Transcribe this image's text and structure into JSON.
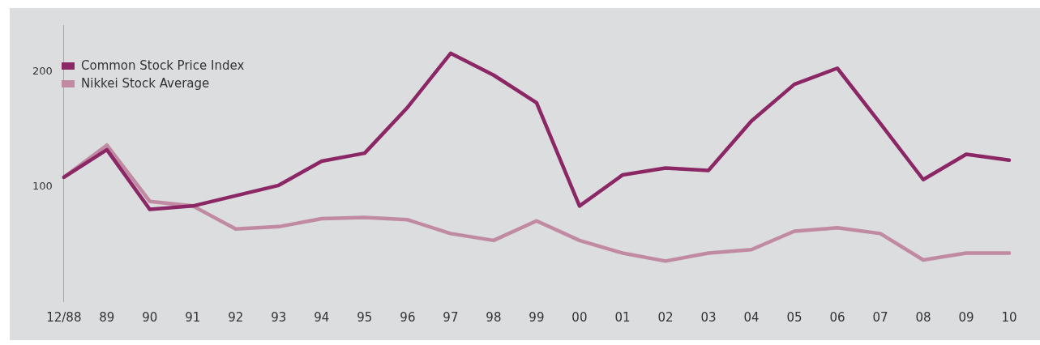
{
  "chart_data": {
    "type": "line",
    "categories": [
      "12/88",
      "89",
      "90",
      "91",
      "92",
      "93",
      "94",
      "95",
      "96",
      "97",
      "98",
      "99",
      "00",
      "01",
      "02",
      "03",
      "04",
      "05",
      "06",
      "07",
      "08",
      "09",
      "10"
    ],
    "series": [
      {
        "name": "Common Stock Price Index",
        "color": "#8b2765",
        "values": [
          108,
          132,
          80,
          83,
          92,
          101,
          122,
          129,
          169,
          216,
          197,
          173,
          83,
          110,
          116,
          114,
          157,
          189,
          203,
          155,
          106,
          128,
          123
        ]
      },
      {
        "name": "Nikkei Stock Average",
        "color": "#c08aa2",
        "values": [
          108,
          136,
          87,
          83,
          63,
          65,
          72,
          73,
          71,
          59,
          53,
          70,
          53,
          42,
          35,
          42,
          45,
          61,
          64,
          59,
          36,
          42,
          42
        ]
      }
    ],
    "ylim": [
      0,
      240
    ],
    "yticks": [
      100,
      200
    ],
    "legend": "top left",
    "line_style": "solid"
  }
}
